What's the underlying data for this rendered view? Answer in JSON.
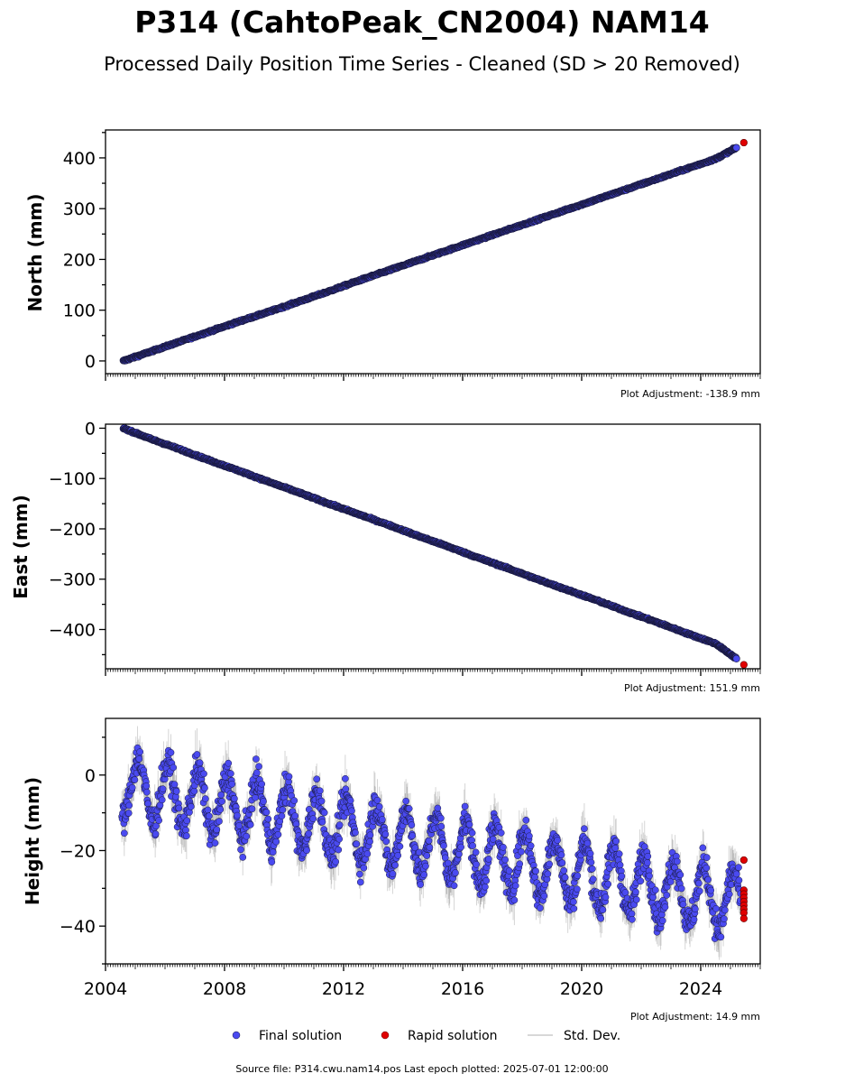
{
  "figure": {
    "title": "P314 (CahtoPeak_CN2004) NAM14",
    "subtitle": "Processed Daily Position Time Series - Cleaned (SD > 20 Removed)",
    "source_note": "Source file: P314.cwu.nam14.pos  Last epoch plotted: 2025-07-01 12:00:00"
  },
  "legend": {
    "final": "Final solution",
    "rapid": "Rapid solution",
    "std": "Std. Dev."
  },
  "colors": {
    "final": "#4a4af0",
    "final_edge": "#1a1a40",
    "rapid": "#e00000",
    "std": "#888888"
  },
  "chart_data": [
    {
      "type": "scatter",
      "panel": "north",
      "ylabel": "North (mm)",
      "adjustment": "Plot Adjustment: -138.9 mm",
      "xlim": [
        2004,
        2026
      ],
      "ylim": [
        -25,
        455
      ],
      "yticks": [
        0,
        100,
        200,
        300,
        400
      ],
      "ytick_labels": [
        "0",
        "100",
        "200",
        "300",
        "400"
      ],
      "xtick_labels": [],
      "series": [
        {
          "name": "Final solution",
          "x": [
            2004.6,
            2005.5,
            2006.5,
            2007.5,
            2008.5,
            2009.5,
            2010.5,
            2011.5,
            2012.5,
            2013.5,
            2014.5,
            2015.5,
            2016.5,
            2017.5,
            2018.5,
            2019.5,
            2020.5,
            2021.5,
            2022.5,
            2023.5,
            2024.5,
            2025.2
          ],
          "y": [
            0,
            18,
            38,
            58,
            78,
            97,
            117,
            137,
            158,
            178,
            198,
            218,
            238,
            258,
            278,
            298,
            318,
            338,
            358,
            378,
            398,
            420
          ]
        },
        {
          "name": "Rapid solution",
          "x": [
            2025.45
          ],
          "y": [
            430
          ]
        }
      ]
    },
    {
      "type": "scatter",
      "panel": "east",
      "ylabel": "East (mm)",
      "adjustment": "Plot Adjustment: 151.9 mm",
      "xlim": [
        2004,
        2026
      ],
      "ylim": [
        -478,
        8
      ],
      "yticks": [
        0,
        -100,
        -200,
        -300,
        -400
      ],
      "ytick_labels": [
        "0",
        "−100",
        "−200",
        "−300",
        "−400"
      ],
      "xtick_labels": [],
      "series": [
        {
          "name": "Final solution",
          "x": [
            2004.6,
            2005.5,
            2006.5,
            2007.5,
            2008.5,
            2009.5,
            2010.5,
            2011.5,
            2012.5,
            2013.5,
            2014.5,
            2015.5,
            2016.5,
            2017.5,
            2018.5,
            2019.5,
            2020.5,
            2021.5,
            2022.5,
            2023.5,
            2024.5,
            2025.2
          ],
          "y": [
            0,
            -21,
            -42,
            -64,
            -85,
            -107,
            -128,
            -150,
            -171,
            -192,
            -214,
            -235,
            -257,
            -278,
            -300,
            -321,
            -342,
            -364,
            -385,
            -407,
            -428,
            -458
          ]
        },
        {
          "name": "Rapid solution",
          "x": [
            2025.45
          ],
          "y": [
            -470
          ]
        }
      ]
    },
    {
      "type": "scatter",
      "panel": "height",
      "ylabel": "Height (mm)",
      "adjustment": "Plot Adjustment: 14.9 mm",
      "xlim": [
        2004,
        2026
      ],
      "ylim": [
        -50,
        15
      ],
      "yticks": [
        0,
        -20,
        -40
      ],
      "ytick_labels": [
        "0",
        "−20",
        "−40"
      ],
      "xticks": [
        2004,
        2008,
        2012,
        2016,
        2020,
        2024
      ],
      "xtick_labels": [
        "2004",
        "2008",
        "2012",
        "2016",
        "2020",
        "2024"
      ],
      "series": [
        {
          "name": "Final solution",
          "trend_y": [
            -3,
            -34
          ],
          "seasonal_amplitude_mm": 8,
          "noise_mm": 3
        },
        {
          "name": "Rapid solution",
          "x": [
            2025.45,
            2025.45,
            2025.45,
            2025.45,
            2025.45,
            2025.45,
            2025.45,
            2025.45,
            2025.45
          ],
          "y": [
            -22.5,
            -30.5,
            -31.5,
            -32.5,
            -33.5,
            -34.5,
            -35.5,
            -36.5,
            -38
          ]
        }
      ]
    }
  ]
}
